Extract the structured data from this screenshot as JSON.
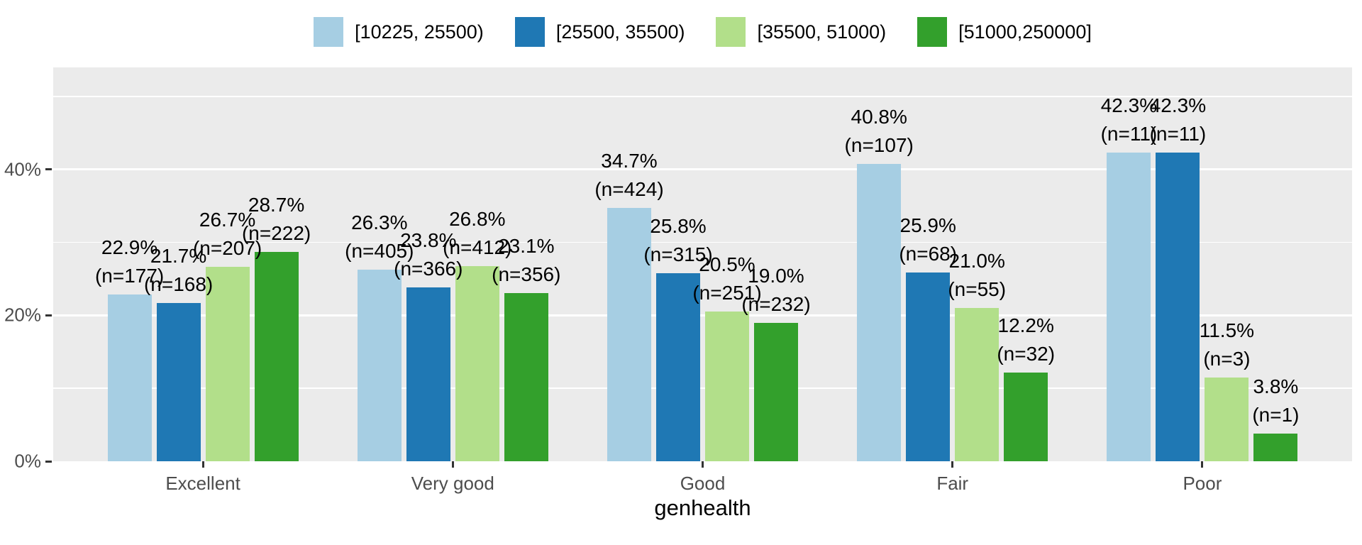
{
  "chart_data": {
    "type": "bar",
    "title": "",
    "xlabel": "genhealth",
    "ylabel": "",
    "categories": [
      "Excellent",
      "Very good",
      "Good",
      "Fair",
      "Poor"
    ],
    "series": [
      {
        "name": "[10225, 25500)",
        "color": "#A6CEE3",
        "values": [
          22.9,
          26.3,
          34.7,
          40.8,
          42.3
        ],
        "counts": [
          177,
          405,
          424,
          107,
          11
        ]
      },
      {
        "name": "[25500, 35500)",
        "color": "#1F78B4",
        "values": [
          21.7,
          23.8,
          25.8,
          25.9,
          42.3
        ],
        "counts": [
          168,
          366,
          315,
          68,
          11
        ]
      },
      {
        "name": "[35500, 51000)",
        "color": "#B2DF8A",
        "values": [
          26.7,
          26.8,
          20.5,
          21.0,
          11.5
        ],
        "counts": [
          207,
          412,
          251,
          55,
          3
        ]
      },
      {
        "name": "[51000,250000]",
        "color": "#33A02C",
        "values": [
          28.7,
          23.1,
          19.0,
          12.2,
          3.8
        ],
        "counts": [
          222,
          356,
          232,
          32,
          1
        ]
      }
    ],
    "bar_label_format": "{value}% / (n={count})",
    "y_ticks": [
      {
        "value": 0,
        "label": "0%"
      },
      {
        "value": 20,
        "label": "20%"
      },
      {
        "value": 40,
        "label": "40%"
      }
    ],
    "ylim": [
      0,
      54
    ],
    "grid": {
      "major": [
        20,
        40
      ],
      "minor": [
        10,
        30,
        50
      ],
      "visible": true
    },
    "legend_position": "top",
    "colors": {
      "panel_background": "#EBEBEB",
      "gridline": "#FFFFFF",
      "axis_text": "#4D4D4D",
      "bar_label_text": "#000000"
    }
  }
}
